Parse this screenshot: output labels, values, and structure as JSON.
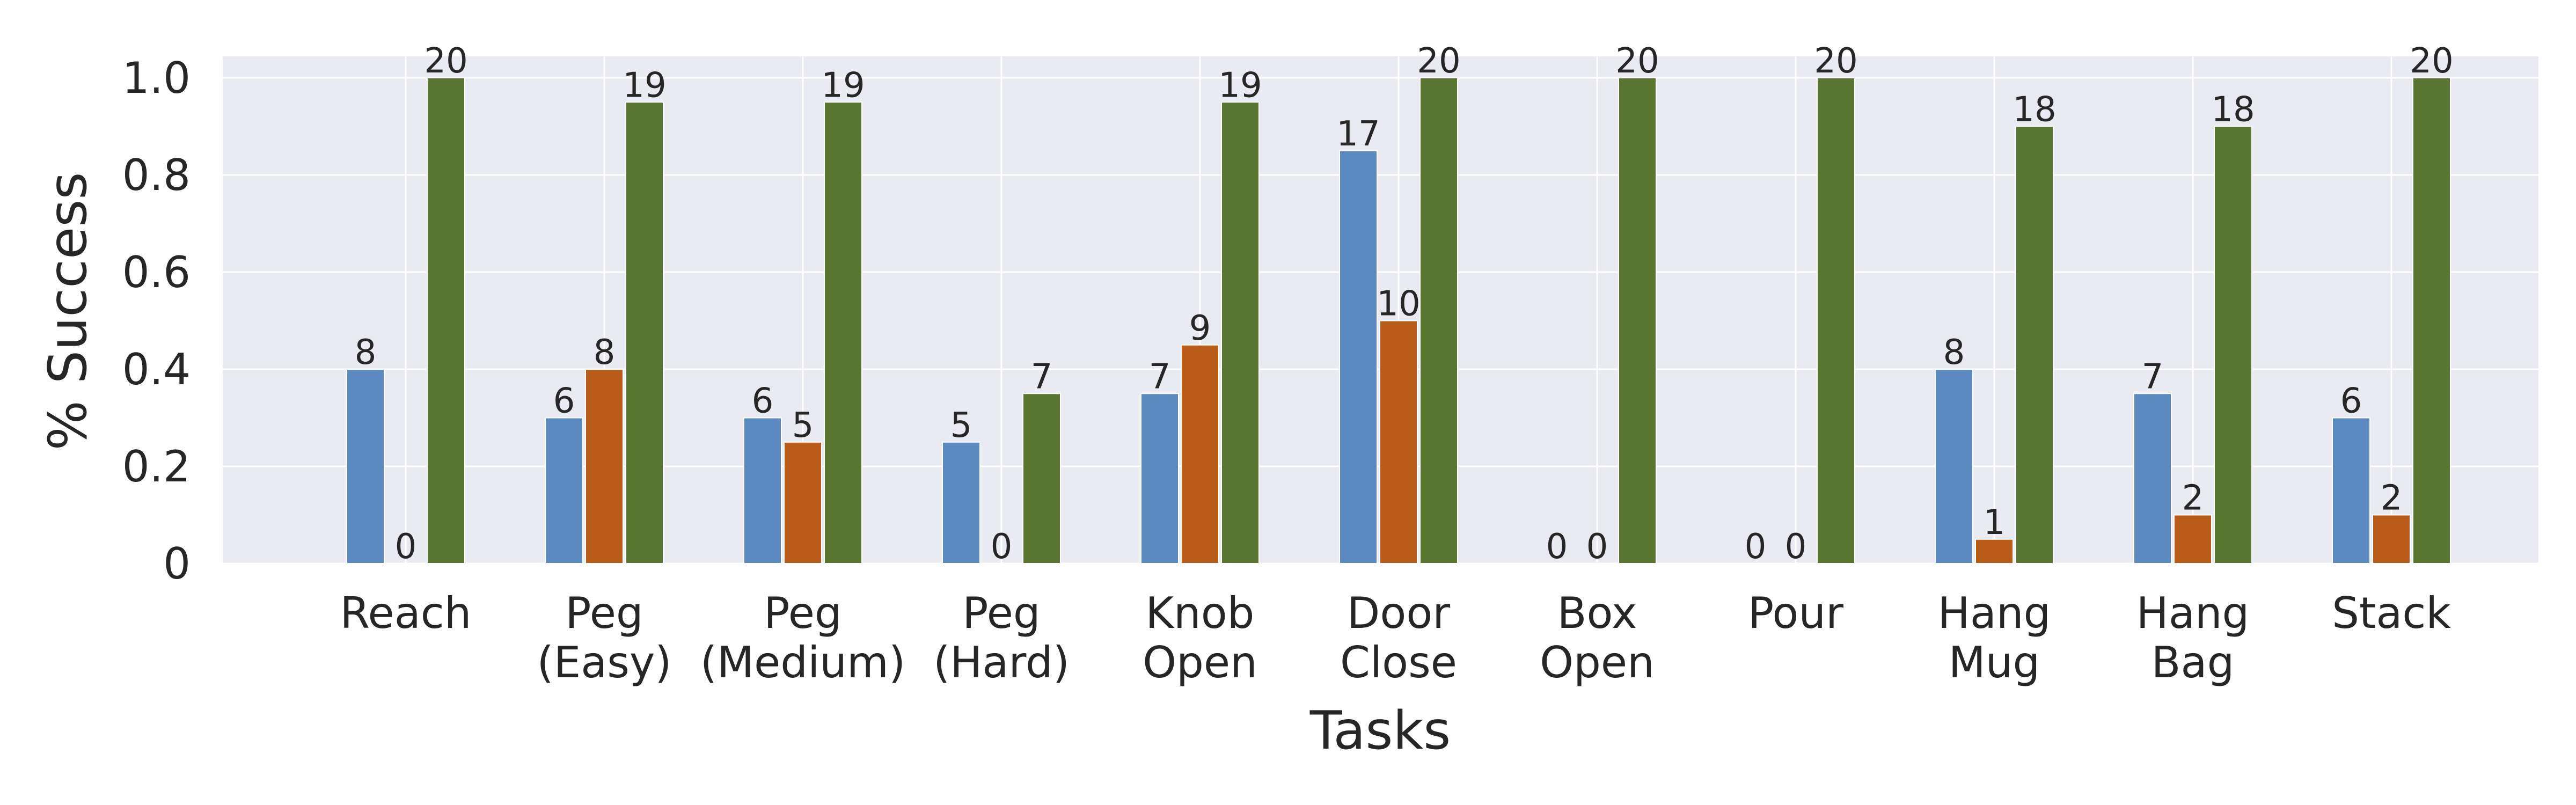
{
  "chart_data": {
    "type": "bar",
    "xlabel": "Tasks",
    "ylabel": "% Success",
    "ylim": [
      0,
      1.05
    ],
    "yticks": [
      {
        "value": 0,
        "label": "0"
      },
      {
        "value": 0.2,
        "label": "0.2"
      },
      {
        "value": 0.4,
        "label": "0.4"
      },
      {
        "value": 0.6,
        "label": "0.6"
      },
      {
        "value": 0.8,
        "label": "0.8"
      },
      {
        "value": 1.0,
        "label": "1.0"
      }
    ],
    "grid": true,
    "legend": "none",
    "categories": [
      [
        "Reach"
      ],
      [
        "Peg",
        "(Easy)"
      ],
      [
        "Peg",
        "(Medium)"
      ],
      [
        "Peg",
        "(Hard)"
      ],
      [
        "Knob",
        "Open"
      ],
      [
        "Door",
        "Close"
      ],
      [
        "Box",
        "Open"
      ],
      [
        "Pour"
      ],
      [
        "Hang",
        "Mug"
      ],
      [
        "Hang",
        "Bag"
      ],
      [
        "Stack"
      ]
    ],
    "series": [
      {
        "color": "#5a8ac0",
        "values": [
          0.4,
          0.3,
          0.3,
          0.25,
          0.35,
          0.85,
          0,
          0,
          0.4,
          0.35,
          0.3
        ],
        "labels": [
          "8",
          "6",
          "6",
          "5",
          "7",
          "17",
          "0",
          "0",
          "8",
          "7",
          "6"
        ]
      },
      {
        "color": "#b95c1a",
        "values": [
          0,
          0.4,
          0.25,
          0,
          0.45,
          0.5,
          0,
          0,
          0.05,
          0.1,
          0.1
        ],
        "labels": [
          "0",
          "8",
          "5",
          "0",
          "9",
          "10",
          "0",
          "0",
          "1",
          "2",
          "2"
        ]
      },
      {
        "color": "#58762f",
        "values": [
          1.0,
          0.95,
          0.95,
          0.35,
          0.95,
          1.0,
          1.0,
          1.0,
          0.9,
          0.9,
          1.0
        ],
        "labels": [
          "20",
          "19",
          "19",
          "7",
          "19",
          "20",
          "20",
          "20",
          "18",
          "18",
          "20"
        ]
      }
    ]
  }
}
